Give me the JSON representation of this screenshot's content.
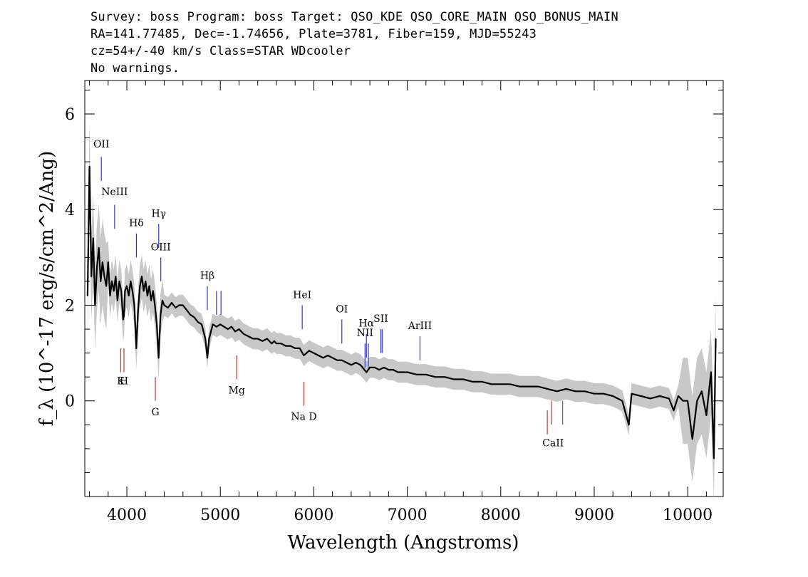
{
  "header": {
    "line1": "Survey: boss Program: boss Target: QSO_KDE QSO_CORE_MAIN QSO_BONUS_MAIN",
    "line2": "RA=141.77485, Dec=-1.74656, Plate=3781, Fiber=159, MJD=55243",
    "line3": "cz=54+/-40 km/s Class=STAR WDcooler",
    "line4": "No warnings."
  },
  "colors": {
    "emission": "#3333cc",
    "absorption": "#cc3333",
    "flux": "#000000",
    "error": "#c8c8c8"
  },
  "chart_data": {
    "type": "line",
    "title": "",
    "xlabel": "Wavelength (Angstroms)",
    "ylabel": "f_λ (10^-17 erg/s/cm^2/Ang)",
    "xlim": [
      3550,
      10380
    ],
    "ylim": [
      -2.0,
      6.7
    ],
    "xticks": [
      4000,
      5000,
      6000,
      7000,
      8000,
      9000,
      10000
    ],
    "yticks": [
      0,
      2,
      4,
      6
    ],
    "series": [
      {
        "name": "",
        "x": [
          3580,
          3600,
          3620,
          3640,
          3660,
          3680,
          3700,
          3720,
          3740,
          3760,
          3780,
          3800,
          3820,
          3840,
          3860,
          3880,
          3900,
          3920,
          3940,
          3960,
          3970,
          3980,
          4000,
          4020,
          4040,
          4060,
          4080,
          4101,
          4120,
          4140,
          4160,
          4180,
          4200,
          4220,
          4240,
          4260,
          4280,
          4300,
          4320,
          4340,
          4360,
          4380,
          4400,
          4440,
          4480,
          4520,
          4560,
          4600,
          4640,
          4680,
          4720,
          4760,
          4800,
          4840,
          4861,
          4880,
          4920,
          4960,
          5000,
          5040,
          5080,
          5120,
          5160,
          5200,
          5250,
          5300,
          5350,
          5400,
          5450,
          5500,
          5550,
          5577,
          5600,
          5650,
          5700,
          5750,
          5800,
          5850,
          5893,
          5950,
          6000,
          6050,
          6100,
          6150,
          6200,
          6250,
          6300,
          6350,
          6400,
          6450,
          6500,
          6563,
          6600,
          6650,
          6700,
          6750,
          6800,
          6850,
          6900,
          6950,
          7000,
          7100,
          7200,
          7300,
          7400,
          7500,
          7600,
          7700,
          7800,
          7900,
          8000,
          8100,
          8200,
          8300,
          8400,
          8500,
          8600,
          8700,
          8800,
          8900,
          9000,
          9100,
          9200,
          9300,
          9370,
          9400,
          9500,
          9600,
          9700,
          9800,
          9850,
          9900,
          9950,
          10000,
          10050,
          10100,
          10150,
          10200,
          10250,
          10280,
          10300
        ],
        "y": [
          2.2,
          4.9,
          2.6,
          3.4,
          2.0,
          2.8,
          3.2,
          2.5,
          2.9,
          2.6,
          2.4,
          2.9,
          2.2,
          2.5,
          2.3,
          2.6,
          2.1,
          2.5,
          2.3,
          1.7,
          1.8,
          2.3,
          2.4,
          2.2,
          2.5,
          2.3,
          2.0,
          1.1,
          1.9,
          2.4,
          2.6,
          2.3,
          2.5,
          2.2,
          2.4,
          2.1,
          2.3,
          2.0,
          1.6,
          0.9,
          1.8,
          2.1,
          2.0,
          1.95,
          2.05,
          1.95,
          2.0,
          2.0,
          1.9,
          1.8,
          1.75,
          1.65,
          1.6,
          1.3,
          0.9,
          1.3,
          1.6,
          1.55,
          1.6,
          1.55,
          1.5,
          1.55,
          1.45,
          1.5,
          1.4,
          1.35,
          1.3,
          1.3,
          1.25,
          1.3,
          1.2,
          1.25,
          1.2,
          1.2,
          1.15,
          1.15,
          1.1,
          1.1,
          0.95,
          1.05,
          1.0,
          0.95,
          0.9,
          0.95,
          0.9,
          0.85,
          0.85,
          0.8,
          0.75,
          0.8,
          0.75,
          0.6,
          0.7,
          0.7,
          0.65,
          0.7,
          0.65,
          0.65,
          0.6,
          0.6,
          0.6,
          0.55,
          0.55,
          0.5,
          0.5,
          0.45,
          0.45,
          0.4,
          0.4,
          0.35,
          0.35,
          0.35,
          0.3,
          0.3,
          0.3,
          0.25,
          0.2,
          0.25,
          0.2,
          0.2,
          0.15,
          0.15,
          0.1,
          0.0,
          -0.5,
          0.15,
          0.1,
          0.05,
          0.1,
          0.05,
          -0.2,
          0.1,
          0.0,
          0.0,
          -0.8,
          0.0,
          0.2,
          -0.3,
          0.6,
          -1.2,
          1.3
        ]
      }
    ],
    "annotations": [
      {
        "label": "OII",
        "x": 3727,
        "kind": "emission",
        "y1": 5.1,
        "y2": 4.6,
        "ty": 5.3
      },
      {
        "label": "NeIII",
        "x": 3869,
        "kind": "emission",
        "y1": 4.1,
        "y2": 3.6,
        "ty": 4.3
      },
      {
        "label": "Hδ",
        "x": 4102,
        "kind": "emission",
        "y1": 3.5,
        "y2": 3.0,
        "ty": 3.65
      },
      {
        "label": "Hγ",
        "x": 4341,
        "kind": "emission",
        "y1": 3.7,
        "y2": 3.2,
        "ty": 3.85
      },
      {
        "label": "OIII",
        "x": 4363,
        "kind": "emission",
        "y1": 3.0,
        "y2": 2.5,
        "ty": 3.15
      },
      {
        "label": "Hβ",
        "x": 4861,
        "kind": "emission",
        "y1": 2.4,
        "y2": 1.9,
        "ty": 2.55
      },
      {
        "label": "OIII",
        "x": 4959,
        "kind": "emission",
        "y1": 2.3,
        "y2": 1.8,
        "ty": 2.45
      },
      {
        "label": "OIII",
        "x": 5007,
        "kind": "emission",
        "y1": 2.3,
        "y2": 1.8,
        "ty": 2.45
      },
      {
        "label": "HeI",
        "x": 5876,
        "kind": "emission",
        "y1": 2.0,
        "y2": 1.5,
        "ty": 2.15
      },
      {
        "label": "OI",
        "x": 6300,
        "kind": "emission",
        "y1": 1.7,
        "y2": 1.2,
        "ty": 1.85
      },
      {
        "label": "NII",
        "x": 6548,
        "kind": "emission",
        "y1": 1.2,
        "y2": 0.7,
        "ty": 1.35
      },
      {
        "label": "Hα",
        "x": 6563,
        "kind": "emission",
        "y1": 1.4,
        "y2": 0.9,
        "ty": 1.55
      },
      {
        "label": "NII",
        "x": 6584,
        "kind": "emission",
        "y1": 1.2,
        "y2": 0.7,
        "ty": 1.35
      },
      {
        "label": "SII",
        "x": 6717,
        "kind": "emission",
        "y1": 1.5,
        "y2": 1.0,
        "ty": 1.65
      },
      {
        "label": "SII",
        "x": 6731,
        "kind": "emission",
        "y1": 1.5,
        "y2": 1.0,
        "ty": 1.65
      },
      {
        "label": "ArIII",
        "x": 7136,
        "kind": "emission",
        "y1": 1.35,
        "y2": 0.85,
        "ty": 1.5
      },
      {
        "label": "K",
        "x": 3934,
        "kind": "absorption",
        "y1": 1.1,
        "y2": 0.6,
        "ty": 0.35
      },
      {
        "label": "H",
        "x": 3969,
        "kind": "absorption",
        "y1": 1.1,
        "y2": 0.6,
        "ty": 0.35
      },
      {
        "label": "G",
        "x": 4305,
        "kind": "absorption",
        "y1": 0.5,
        "y2": 0.0,
        "ty": -0.3
      },
      {
        "label": "Mg",
        "x": 5175,
        "kind": "absorption",
        "y1": 0.95,
        "y2": 0.45,
        "ty": 0.15
      },
      {
        "label": "Na D",
        "x": 5894,
        "kind": "absorption",
        "y1": 0.4,
        "y2": -0.1,
        "ty": -0.4
      },
      {
        "label": "CaII",
        "x": 8498,
        "kind": "absorption",
        "y1": -0.2,
        "y2": -0.7,
        "ty": -0.95
      },
      {
        "label": "CaII",
        "x": 8542,
        "kind": "absorption",
        "y1": 0.0,
        "y2": -0.5,
        "ty": -0.95
      },
      {
        "label": "CaII",
        "x": 8662,
        "kind": "absorption",
        "y1": 0.0,
        "y2": -0.5,
        "ty": -0.95
      }
    ]
  }
}
